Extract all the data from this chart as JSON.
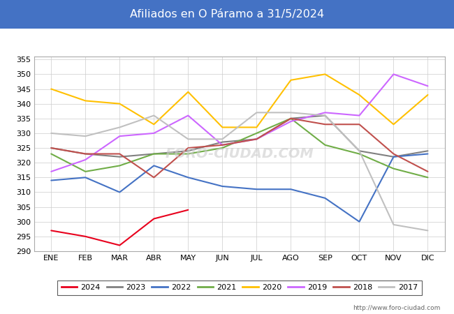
{
  "title": "Afiliados en O Páramo a 31/5/2024",
  "title_bg_color": "#4472c4",
  "title_text_color": "white",
  "ylim": [
    290,
    356
  ],
  "yticks": [
    290,
    295,
    300,
    305,
    310,
    315,
    320,
    325,
    330,
    335,
    340,
    345,
    350,
    355
  ],
  "months": [
    "ENE",
    "FEB",
    "MAR",
    "ABR",
    "MAY",
    "JUN",
    "JUL",
    "AGO",
    "SEP",
    "OCT",
    "NOV",
    "DIC"
  ],
  "watermark": "FORO-CIUDAD.COM",
  "url": "http://www.foro-ciudad.com",
  "series": {
    "2024": {
      "color": "#e8001c",
      "values": [
        297,
        295,
        292,
        301,
        304,
        null,
        null,
        null,
        null,
        null,
        null,
        null
      ]
    },
    "2023": {
      "color": "#808080",
      "values": [
        325,
        323,
        322,
        323,
        324,
        327,
        328,
        335,
        336,
        324,
        322,
        324
      ]
    },
    "2022": {
      "color": "#4472c4",
      "values": [
        314,
        315,
        310,
        319,
        315,
        312,
        311,
        311,
        308,
        300,
        322,
        323
      ]
    },
    "2021": {
      "color": "#70ad47",
      "values": [
        323,
        317,
        319,
        323,
        323,
        325,
        330,
        335,
        326,
        323,
        318,
        315
      ]
    },
    "2020": {
      "color": "#ffc000",
      "values": [
        345,
        341,
        340,
        333,
        344,
        332,
        332,
        348,
        350,
        343,
        333,
        343
      ]
    },
    "2019": {
      "color": "#cc66ff",
      "values": [
        317,
        321,
        329,
        330,
        336,
        326,
        328,
        334,
        337,
        336,
        350,
        346
      ]
    },
    "2018": {
      "color": "#c0504d",
      "values": [
        325,
        323,
        323,
        315,
        325,
        326,
        328,
        335,
        333,
        333,
        323,
        317
      ]
    },
    "2017": {
      "color": "#c0c0c0",
      "values": [
        330,
        329,
        332,
        336,
        328,
        328,
        337,
        337,
        336,
        324,
        299,
        297
      ]
    }
  },
  "legend_order": [
    "2024",
    "2023",
    "2022",
    "2021",
    "2020",
    "2019",
    "2018",
    "2017"
  ]
}
